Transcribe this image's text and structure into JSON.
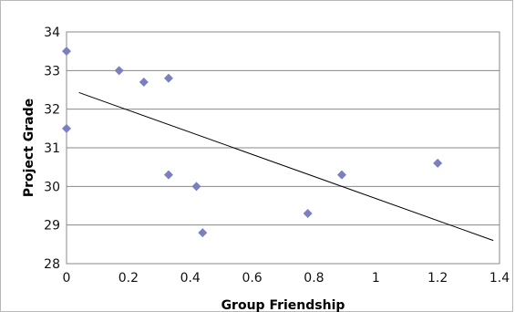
{
  "chart_data": {
    "type": "scatter",
    "title": "",
    "xlabel": "Group Friendship",
    "ylabel": "Project Grade",
    "xlim": [
      0,
      1.4
    ],
    "ylim": [
      28,
      34
    ],
    "xticks": [
      "0",
      "0.2",
      "0.4",
      "0.6",
      "0.8",
      "1",
      "1.2",
      "1.4"
    ],
    "yticks": [
      "28",
      "29",
      "30",
      "31",
      "32",
      "33",
      "34"
    ],
    "grid": "horizontal",
    "legend": "none",
    "marker_color": "#7a7fbf",
    "trendline_color": "#000000",
    "points": [
      {
        "x": 0.0,
        "y": 33.5
      },
      {
        "x": 0.0,
        "y": 31.5
      },
      {
        "x": 0.17,
        "y": 33.0
      },
      {
        "x": 0.25,
        "y": 32.7
      },
      {
        "x": 0.33,
        "y": 32.8
      },
      {
        "x": 0.33,
        "y": 30.3
      },
      {
        "x": 0.42,
        "y": 30.0
      },
      {
        "x": 0.44,
        "y": 28.8
      },
      {
        "x": 0.78,
        "y": 29.3
      },
      {
        "x": 0.89,
        "y": 30.3
      },
      {
        "x": 1.2,
        "y": 30.6
      }
    ],
    "trendline": {
      "x": [
        0.04,
        1.38
      ],
      "y": [
        32.43,
        28.6
      ]
    }
  }
}
